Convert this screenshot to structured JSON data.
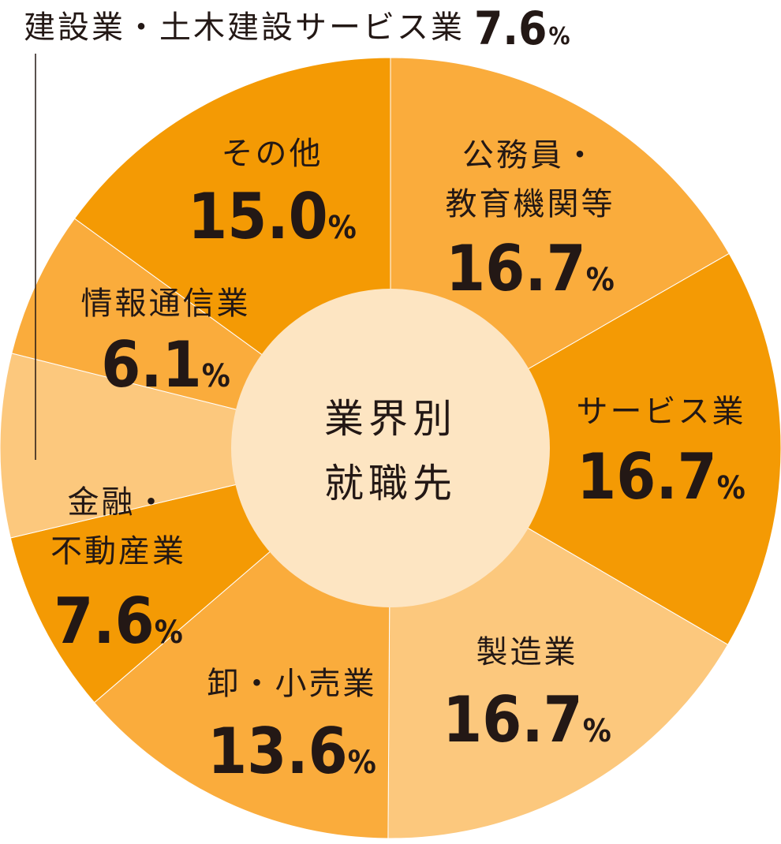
{
  "chart_data": {
    "type": "pie",
    "title": "",
    "center_label": [
      "業界別",
      "就職先"
    ],
    "categories": [
      {
        "label": [
          "公務員・",
          "教育機関等"
        ],
        "value": 16.7,
        "display": "16.7",
        "unit": "%",
        "color": "#FAAC3C"
      },
      {
        "label": [
          "サービス業"
        ],
        "value": 16.7,
        "display": "16.7",
        "unit": "%",
        "color": "#F49A04"
      },
      {
        "label": [
          "製造業"
        ],
        "value": 16.7,
        "display": "16.7",
        "unit": "%",
        "color": "#FCC87D"
      },
      {
        "label": [
          "卸・小売業"
        ],
        "value": 13.6,
        "display": "13.6",
        "unit": "%",
        "color": "#FAAC3C"
      },
      {
        "label": [
          "金融・",
          "不動産業"
        ],
        "value": 7.6,
        "display": "7.6",
        "unit": "%",
        "color": "#F49A04"
      },
      {
        "label": [
          "建設業・土木建設サービス業"
        ],
        "value": 7.6,
        "display": "7.6",
        "unit": "%",
        "color": "#FCC87D",
        "callout": true
      },
      {
        "label": [
          "情報通信業"
        ],
        "value": 6.1,
        "display": "6.1",
        "unit": "%",
        "color": "#FAAC3C"
      },
      {
        "label": [
          "その他"
        ],
        "value": 15.0,
        "display": "15.0",
        "unit": "%",
        "color": "#F49A04"
      }
    ],
    "center_color": "#FDE5C2"
  }
}
